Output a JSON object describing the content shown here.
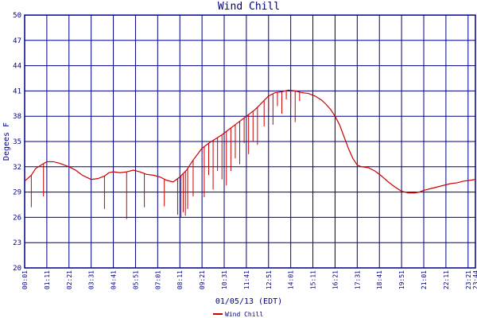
{
  "chart_data": {
    "type": "line",
    "title": "Wind Chill",
    "xlabel": "01/05/13 (EDT)",
    "ylabel": "Degees F",
    "ylim": [
      20,
      50
    ],
    "yticks": [
      20,
      23,
      26,
      29,
      32,
      35,
      38,
      41,
      44,
      47,
      50
    ],
    "xticks": [
      "00:01",
      "01:11",
      "02:21",
      "03:31",
      "04:41",
      "05:51",
      "07:01",
      "08:11",
      "09:21",
      "10:31",
      "11:41",
      "12:51",
      "14:01",
      "15:11",
      "16:21",
      "17:31",
      "18:41",
      "19:51",
      "21:01",
      "22:11",
      "23:21",
      "23:44"
    ],
    "xlim_index": [
      0,
      20.33
    ],
    "grid": true,
    "legend_position": "bottom-left",
    "colors": {
      "series": "#cc0000",
      "grid": "#000080",
      "text": "#000080"
    },
    "series": [
      {
        "name": "Wind Chill",
        "x": [
          0,
          0.3,
          0.5,
          0.8,
          1.0,
          1.3,
          1.6,
          2.0,
          2.3,
          2.6,
          3.0,
          3.3,
          3.6,
          3.8,
          4.0,
          4.3,
          4.6,
          4.9,
          5.2,
          5.5,
          5.8,
          6.1,
          6.4,
          6.7,
          7.0,
          7.3,
          7.6,
          8.0,
          8.3,
          8.6,
          8.9,
          9.2,
          9.5,
          9.8,
          10.1,
          10.4,
          10.7,
          11.0,
          11.3,
          11.6,
          11.9,
          12.2,
          12.5,
          12.8,
          13.1,
          13.4,
          13.6,
          13.8,
          14.0,
          14.2,
          14.4,
          14.6,
          14.8,
          15.0,
          15.2,
          15.5,
          15.8,
          16.1,
          16.4,
          16.7,
          17.0,
          17.3,
          17.6,
          17.8,
          18.0,
          18.3,
          18.6,
          18.9,
          19.2,
          19.5,
          19.8,
          20.1,
          20.33
        ],
        "y": [
          30.3,
          31.0,
          31.8,
          32.3,
          32.6,
          32.6,
          32.4,
          32.0,
          31.6,
          31.0,
          30.5,
          30.6,
          30.9,
          31.3,
          31.4,
          31.3,
          31.4,
          31.6,
          31.4,
          31.1,
          31.0,
          30.8,
          30.4,
          30.2,
          30.8,
          31.6,
          32.8,
          34.2,
          34.8,
          35.3,
          35.8,
          36.4,
          37.0,
          37.6,
          38.2,
          38.8,
          39.6,
          40.4,
          40.8,
          40.9,
          41.1,
          41.0,
          40.8,
          40.7,
          40.4,
          39.9,
          39.4,
          38.8,
          38.0,
          37.0,
          35.6,
          34.2,
          33.0,
          32.2,
          32.0,
          31.9,
          31.5,
          30.9,
          30.2,
          29.6,
          29.1,
          28.9,
          28.9,
          29.0,
          29.2,
          29.4,
          29.6,
          29.8,
          30.0,
          30.1,
          30.3,
          30.4,
          30.5
        ]
      }
    ],
    "dips": [
      {
        "x": 0.3,
        "y": 27.2
      },
      {
        "x": 0.85,
        "y": 28.5
      },
      {
        "x": 3.6,
        "y": 27.0
      },
      {
        "x": 4.6,
        "y": 25.8
      },
      {
        "x": 5.4,
        "y": 27.2
      },
      {
        "x": 6.3,
        "y": 27.3
      },
      {
        "x": 6.9,
        "y": 26.3
      },
      {
        "x": 7.05,
        "y": 26.0
      },
      {
        "x": 7.15,
        "y": 26.6
      },
      {
        "x": 7.25,
        "y": 26.2
      },
      {
        "x": 7.35,
        "y": 27.0
      },
      {
        "x": 7.6,
        "y": 28.5
      },
      {
        "x": 8.1,
        "y": 28.4
      },
      {
        "x": 8.3,
        "y": 31.0
      },
      {
        "x": 8.5,
        "y": 29.3
      },
      {
        "x": 8.7,
        "y": 31.5
      },
      {
        "x": 8.9,
        "y": 30.5
      },
      {
        "x": 9.1,
        "y": 29.8
      },
      {
        "x": 9.3,
        "y": 31.5
      },
      {
        "x": 9.5,
        "y": 33.0
      },
      {
        "x": 9.7,
        "y": 32.3
      },
      {
        "x": 9.9,
        "y": 34.8
      },
      {
        "x": 10.1,
        "y": 33.5
      },
      {
        "x": 10.3,
        "y": 35.0
      },
      {
        "x": 10.5,
        "y": 34.6
      },
      {
        "x": 10.8,
        "y": 36.8
      },
      {
        "x": 11.0,
        "y": 38.5
      },
      {
        "x": 11.2,
        "y": 37.0
      },
      {
        "x": 11.4,
        "y": 39.2
      },
      {
        "x": 11.6,
        "y": 38.3
      },
      {
        "x": 11.8,
        "y": 40.0
      },
      {
        "x": 12.0,
        "y": 39.2
      },
      {
        "x": 12.2,
        "y": 37.3
      },
      {
        "x": 12.4,
        "y": 39.8
      }
    ]
  }
}
